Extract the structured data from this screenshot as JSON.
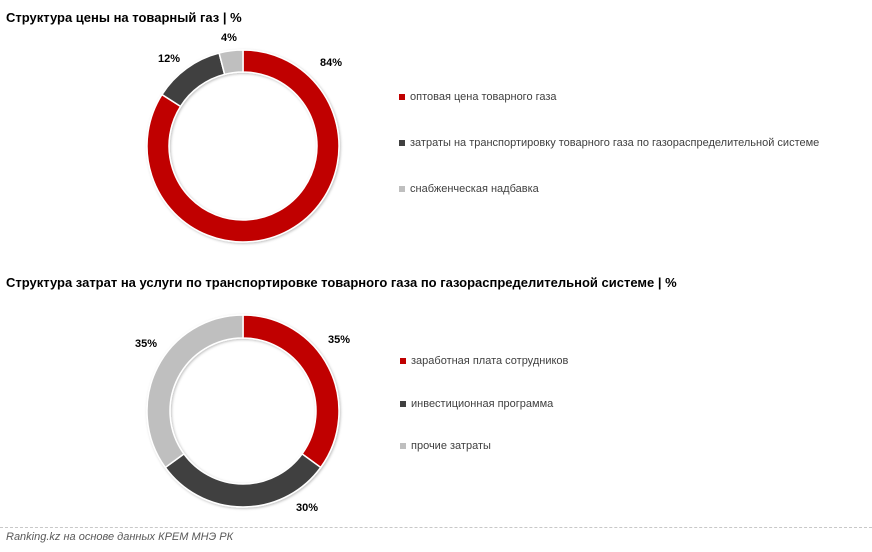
{
  "chart_data": [
    {
      "type": "pie",
      "subtype": "donut",
      "title": "Структура цены на товарный газ | %",
      "categories": [
        "оптовая цена товарного газа",
        "затраты на транспортировку товарного газа по газораспределительной системе",
        "снабженческая надбавка"
      ],
      "values": [
        84,
        12,
        4
      ],
      "labels": [
        "84%",
        "12%",
        "4%"
      ],
      "colors": [
        "#c00000",
        "#404040",
        "#bfbfbf"
      ],
      "legend_position": "right"
    },
    {
      "type": "pie",
      "subtype": "donut",
      "title": "Структура затрат на услуги по транспортировке товарного газа по газораспределительной системе | %",
      "categories": [
        "заработная плата сотрудников",
        "инвестиционная программа",
        "прочие затраты"
      ],
      "values": [
        35,
        30,
        35
      ],
      "labels": [
        "35%",
        "30%",
        "35%"
      ],
      "colors": [
        "#c00000",
        "#404040",
        "#bfbfbf"
      ],
      "legend_position": "right"
    }
  ],
  "charts": [
    {
      "title": "Структура цены на товарный газ | %",
      "slices": [
        {
          "legend": "оптовая цена товарного газа",
          "label": "84%"
        },
        {
          "legend": "затраты на транспортировку товарного газа по газораспределительной системе",
          "label": "12%"
        },
        {
          "legend": "снабженческая надбавка",
          "label": "4%"
        }
      ]
    },
    {
      "title": "Структура затрат на услуги по транспортировке товарного газа по газораспределительной системе | %",
      "slices": [
        {
          "legend": "заработная плата сотрудников",
          "label": "35%"
        },
        {
          "legend": "инвестиционная программа",
          "label": "30%"
        },
        {
          "legend": "прочие затраты",
          "label": "35%"
        }
      ]
    }
  ],
  "colors": {
    "red": "#c00000",
    "dark": "#404040",
    "light": "#bfbfbf"
  },
  "footer": {
    "source": "Ranking.kz на основе данных КРЕМ МНЭ РК"
  }
}
